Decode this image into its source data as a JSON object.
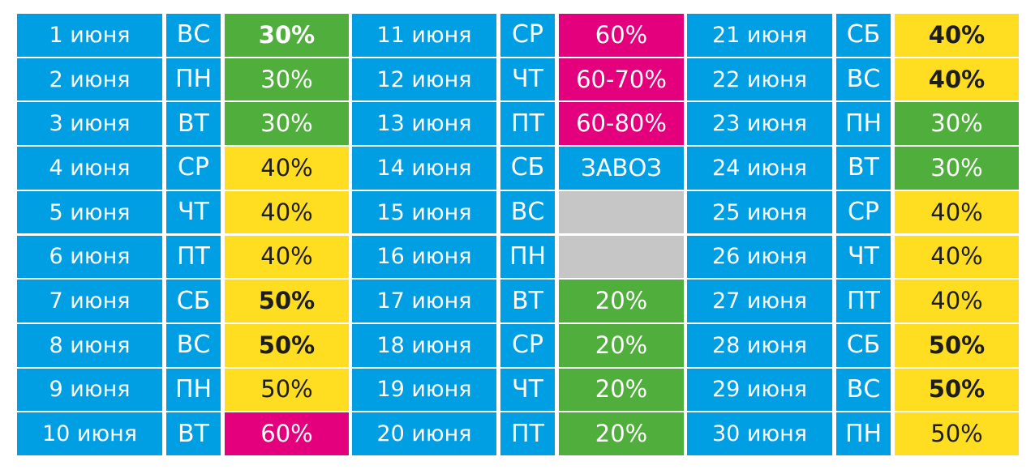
{
  "colors": {
    "blue": "#009FE3",
    "green": "#50AE3C",
    "yellow": "#FFDE21",
    "pink": "#E4007C",
    "gray": "#C6C6C6"
  },
  "columns": [
    {
      "rows": [
        {
          "date": "1 июня",
          "day": "ВС",
          "discount": "30%",
          "color": "green",
          "bold": true
        },
        {
          "date": "2 июня",
          "day": "ПН",
          "discount": "30%",
          "color": "green",
          "bold": false
        },
        {
          "date": "3 июня",
          "day": "ВТ",
          "discount": "30%",
          "color": "green",
          "bold": false
        },
        {
          "date": "4 июня",
          "day": "СР",
          "discount": "40%",
          "color": "yellow",
          "bold": false
        },
        {
          "date": "5 июня",
          "day": "ЧТ",
          "discount": "40%",
          "color": "yellow",
          "bold": false
        },
        {
          "date": "6 июня",
          "day": "ПТ",
          "discount": "40%",
          "color": "yellow",
          "bold": false
        },
        {
          "date": "7 июня",
          "day": "СБ",
          "discount": "50%",
          "color": "yellow",
          "bold": true
        },
        {
          "date": "8 июня",
          "day": "ВС",
          "discount": "50%",
          "color": "yellow",
          "bold": true
        },
        {
          "date": "9 июня",
          "day": "ПН",
          "discount": "50%",
          "color": "yellow",
          "bold": false
        },
        {
          "date": "10 июня",
          "day": "ВТ",
          "discount": "60%",
          "color": "pink",
          "bold": false
        }
      ]
    },
    {
      "rows": [
        {
          "date": "11 июня",
          "day": "СР",
          "discount": "60%",
          "color": "pink",
          "bold": false
        },
        {
          "date": "12 июня",
          "day": "ЧТ",
          "discount": "60-70%",
          "color": "pink",
          "bold": false
        },
        {
          "date": "13 июня",
          "day": "ПТ",
          "discount": "60-80%",
          "color": "pink",
          "bold": false
        },
        {
          "date": "14 июня",
          "day": "СБ",
          "discount": "ЗАВОЗ",
          "color": "blue",
          "bold": false
        },
        {
          "date": "15 июня",
          "day": "ВС",
          "discount": "",
          "color": "gray",
          "bold": false
        },
        {
          "date": "16 июня",
          "day": "ПН",
          "discount": "",
          "color": "gray",
          "bold": false
        },
        {
          "date": "17 июня",
          "day": "ВТ",
          "discount": "20%",
          "color": "green",
          "bold": false
        },
        {
          "date": "18 июня",
          "day": "СР",
          "discount": "20%",
          "color": "green",
          "bold": false
        },
        {
          "date": "19 июня",
          "day": "ЧТ",
          "discount": "20%",
          "color": "green",
          "bold": false
        },
        {
          "date": "20 июня",
          "day": "ПТ",
          "discount": "20%",
          "color": "green",
          "bold": false
        }
      ]
    },
    {
      "rows": [
        {
          "date": "21 июня",
          "day": "СБ",
          "discount": "40%",
          "color": "yellow",
          "bold": true
        },
        {
          "date": "22 июня",
          "day": "ВС",
          "discount": "40%",
          "color": "yellow",
          "bold": true
        },
        {
          "date": "23 июня",
          "day": "ПН",
          "discount": "30%",
          "color": "green",
          "bold": false
        },
        {
          "date": "24 июня",
          "day": "ВТ",
          "discount": "30%",
          "color": "green",
          "bold": false
        },
        {
          "date": "25 июня",
          "day": "СР",
          "discount": "40%",
          "color": "yellow",
          "bold": false
        },
        {
          "date": "26 июня",
          "day": "ЧТ",
          "discount": "40%",
          "color": "yellow",
          "bold": false
        },
        {
          "date": "27 июня",
          "day": "ПТ",
          "discount": "40%",
          "color": "yellow",
          "bold": false
        },
        {
          "date": "28 июня",
          "day": "СБ",
          "discount": "50%",
          "color": "yellow",
          "bold": true
        },
        {
          "date": "29 июня",
          "day": "ВС",
          "discount": "50%",
          "color": "yellow",
          "bold": true
        },
        {
          "date": "30 июня",
          "day": "ПН",
          "discount": "50%",
          "color": "yellow",
          "bold": false
        }
      ]
    }
  ]
}
